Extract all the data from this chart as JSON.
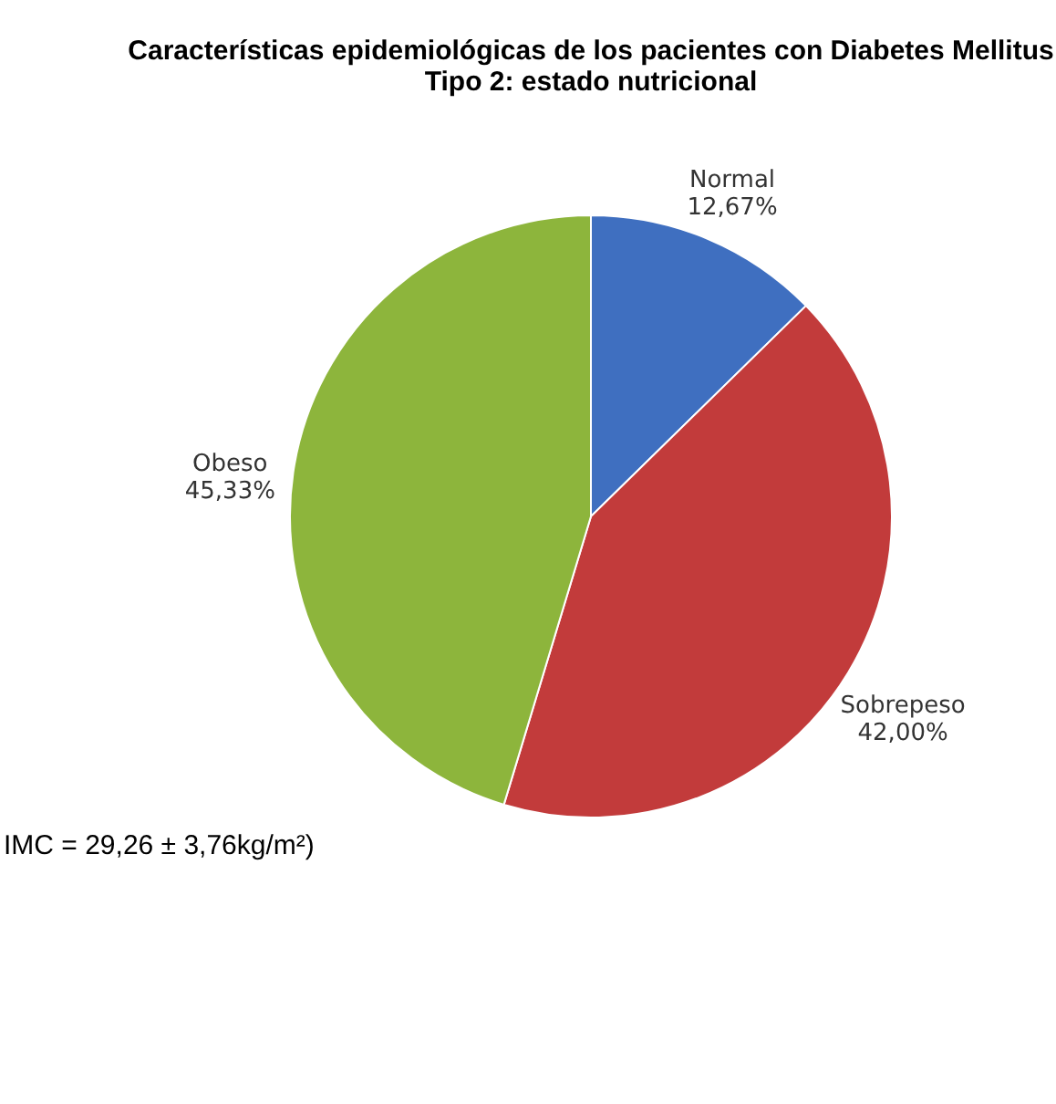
{
  "chart_data": {
    "type": "pie",
    "title": "Características epidemiológicas de los pacientes con Diabetes Mellitus\nTipo 2: estado nutricional",
    "categories": [
      "Normal",
      "Sobrepeso",
      "Obeso"
    ],
    "values": [
      12.67,
      42.0,
      45.33
    ],
    "value_labels": [
      "12,67%",
      "42,00%",
      "45,33%"
    ],
    "colors": [
      "#3f6fc0",
      "#c23b3b",
      "#8db53c"
    ],
    "legend": false,
    "annotations": [
      "IMC = 29,26 ± 3,76kg/m²)"
    ]
  }
}
